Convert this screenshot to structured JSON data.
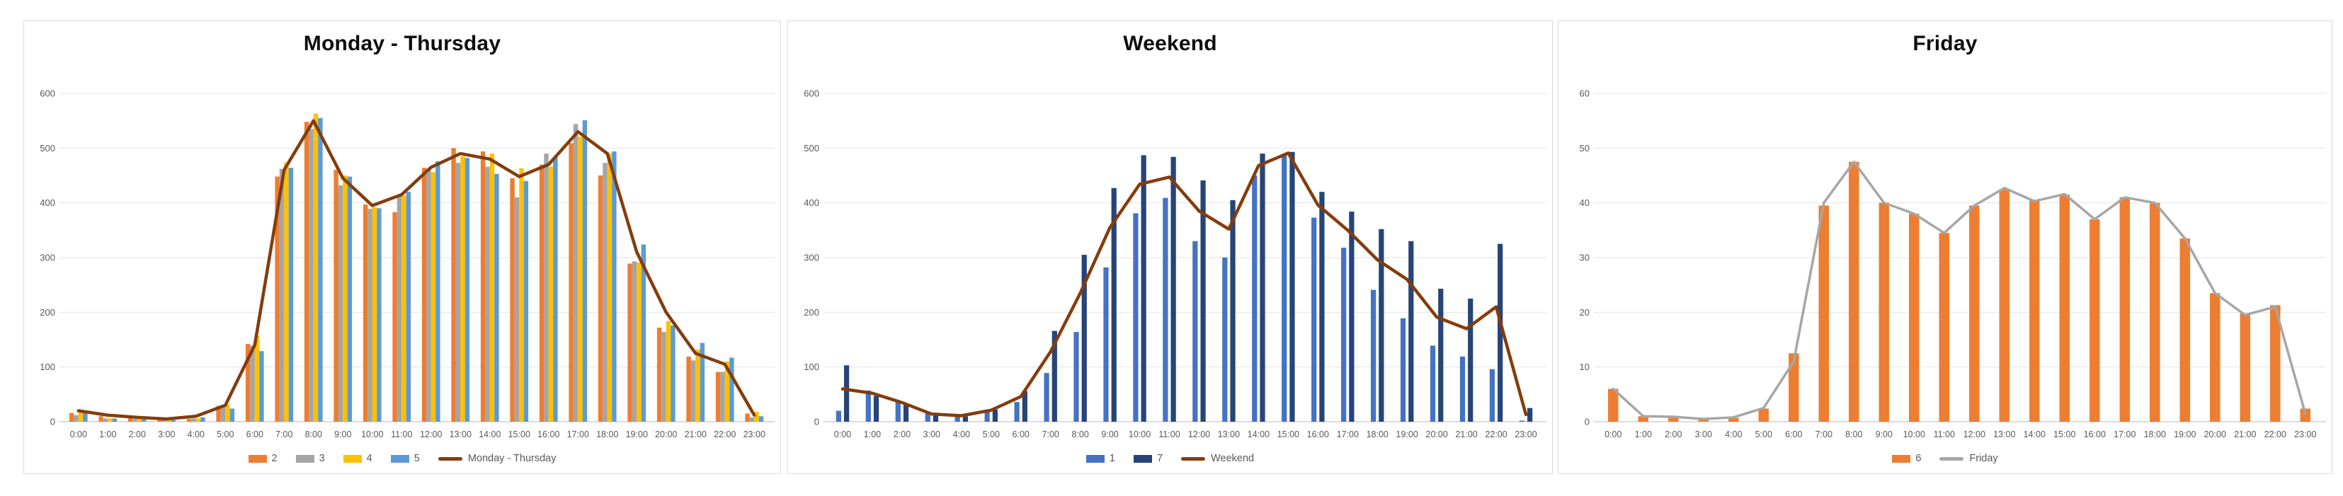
{
  "chart_data": [
    {
      "type": "bar",
      "title": "Monday - Thursday",
      "categories": [
        "0:00",
        "1:00",
        "2:00",
        "3:00",
        "4:00",
        "5:00",
        "6:00",
        "7:00",
        "8:00",
        "9:00",
        "10:00",
        "11:00",
        "12:00",
        "13:00",
        "14:00",
        "15:00",
        "16:00",
        "17:00",
        "18:00",
        "19:00",
        "20:00",
        "21:00",
        "22:00",
        "23:00"
      ],
      "y_axis": {
        "min": 0,
        "max": 600,
        "step": 100
      },
      "grid": true,
      "legend_position": "bottom",
      "bar_series": [
        {
          "name": "2",
          "color": "#ED7D31",
          "values": [
            16,
            10,
            8,
            3,
            5,
            29,
            142,
            448,
            548,
            460,
            397,
            383,
            464,
            500,
            494,
            445,
            470,
            509,
            450,
            289,
            172,
            119,
            91,
            15
          ]
        },
        {
          "name": "3",
          "color": "#A5A5A5",
          "values": [
            12,
            6,
            5,
            3,
            6,
            31,
            139,
            462,
            535,
            432,
            389,
            412,
            461,
            473,
            466,
            410,
            490,
            544,
            473,
            293,
            164,
            112,
            91,
            8
          ]
        },
        {
          "name": "4",
          "color": "#FFC000",
          "values": [
            18,
            6,
            5,
            3,
            6,
            32,
            157,
            474,
            563,
            450,
            392,
            413,
            456,
            485,
            490,
            463,
            466,
            521,
            490,
            291,
            184,
            132,
            110,
            18
          ]
        },
        {
          "name": "5",
          "color": "#5B9BD5",
          "values": [
            20,
            6,
            5,
            3,
            8,
            24,
            129,
            464,
            555,
            448,
            390,
            420,
            476,
            482,
            453,
            440,
            483,
            551,
            494,
            324,
            176,
            144,
            117,
            10
          ]
        }
      ],
      "line_series": [
        {
          "name": "Monday - Thursday",
          "color": "#843C0C",
          "stroke_width": 4.5,
          "values": [
            20,
            12,
            8,
            5,
            10,
            30,
            140,
            460,
            550,
            445,
            395,
            415,
            465,
            490,
            480,
            448,
            470,
            530,
            490,
            310,
            200,
            125,
            105,
            12
          ]
        }
      ]
    },
    {
      "type": "bar",
      "title": "Weekend",
      "categories": [
        "0:00",
        "1:00",
        "2:00",
        "3:00",
        "4:00",
        "5:00",
        "6:00",
        "7:00",
        "8:00",
        "9:00",
        "10:00",
        "11:00",
        "12:00",
        "13:00",
        "14:00",
        "15:00",
        "16:00",
        "17:00",
        "18:00",
        "19:00",
        "20:00",
        "21:00",
        "22:00",
        "23:00"
      ],
      "y_axis": {
        "min": 0,
        "max": 600,
        "step": 100
      },
      "grid": true,
      "legend_position": "bottom",
      "bar_series": [
        {
          "name": "1",
          "color": "#4472C4",
          "values": [
            20,
            57,
            37,
            15,
            12,
            20,
            36,
            89,
            164,
            282,
            381,
            409,
            330,
            300,
            450,
            489,
            373,
            318,
            241,
            189,
            139,
            119,
            96,
            2
          ]
        },
        {
          "name": "7",
          "color": "#264478",
          "values": [
            103,
            47,
            33,
            13,
            10,
            22,
            56,
            166,
            305,
            427,
            487,
            484,
            441,
            405,
            490,
            493,
            420,
            384,
            352,
            330,
            243,
            225,
            325,
            25
          ]
        }
      ],
      "line_series": [
        {
          "name": "Weekend",
          "color": "#843C0C",
          "stroke_width": 4.5,
          "values": [
            60,
            52,
            35,
            14,
            11,
            21,
            46,
            128,
            235,
            355,
            434,
            447,
            385,
            352,
            468,
            491,
            396,
            350,
            296,
            260,
            191,
            170,
            210,
            13
          ]
        }
      ]
    },
    {
      "type": "bar",
      "title": "Friday",
      "categories": [
        "0:00",
        "1:00",
        "2:00",
        "3:00",
        "4:00",
        "5:00",
        "6:00",
        "7:00",
        "8:00",
        "9:00",
        "10:00",
        "11:00",
        "12:00",
        "13:00",
        "14:00",
        "15:00",
        "16:00",
        "17:00",
        "18:00",
        "19:00",
        "20:00",
        "21:00",
        "22:00",
        "23:00"
      ],
      "y_axis": {
        "min": 0,
        "max": 60,
        "step": 10
      },
      "grid": true,
      "legend_position": "bottom",
      "bar_series": [
        {
          "name": "6",
          "color": "#ED7D31",
          "values": [
            6,
            1,
            0.8,
            0.4,
            0.7,
            2.4,
            12.5,
            39.5,
            47.5,
            40,
            38,
            34.5,
            39.5,
            42.5,
            40.5,
            41.5,
            37,
            41,
            40,
            33.5,
            23.5,
            19.8,
            21.3,
            2.4
          ]
        }
      ],
      "line_series": [
        {
          "name": "Friday",
          "color": "#A6A6A6",
          "stroke_width": 3.5,
          "values": [
            6,
            1,
            0.9,
            0.5,
            0.8,
            2.5,
            11,
            40,
            47.5,
            40,
            38,
            34.5,
            39.5,
            42.7,
            40.3,
            41.6,
            37,
            41,
            40,
            33.5,
            23.5,
            19.5,
            21,
            1.5
          ]
        }
      ]
    }
  ],
  "style": {
    "gridline_color": "#E2E2E2",
    "axis_line_color": "#C6C6C6",
    "tick_label_color": "#595959"
  }
}
